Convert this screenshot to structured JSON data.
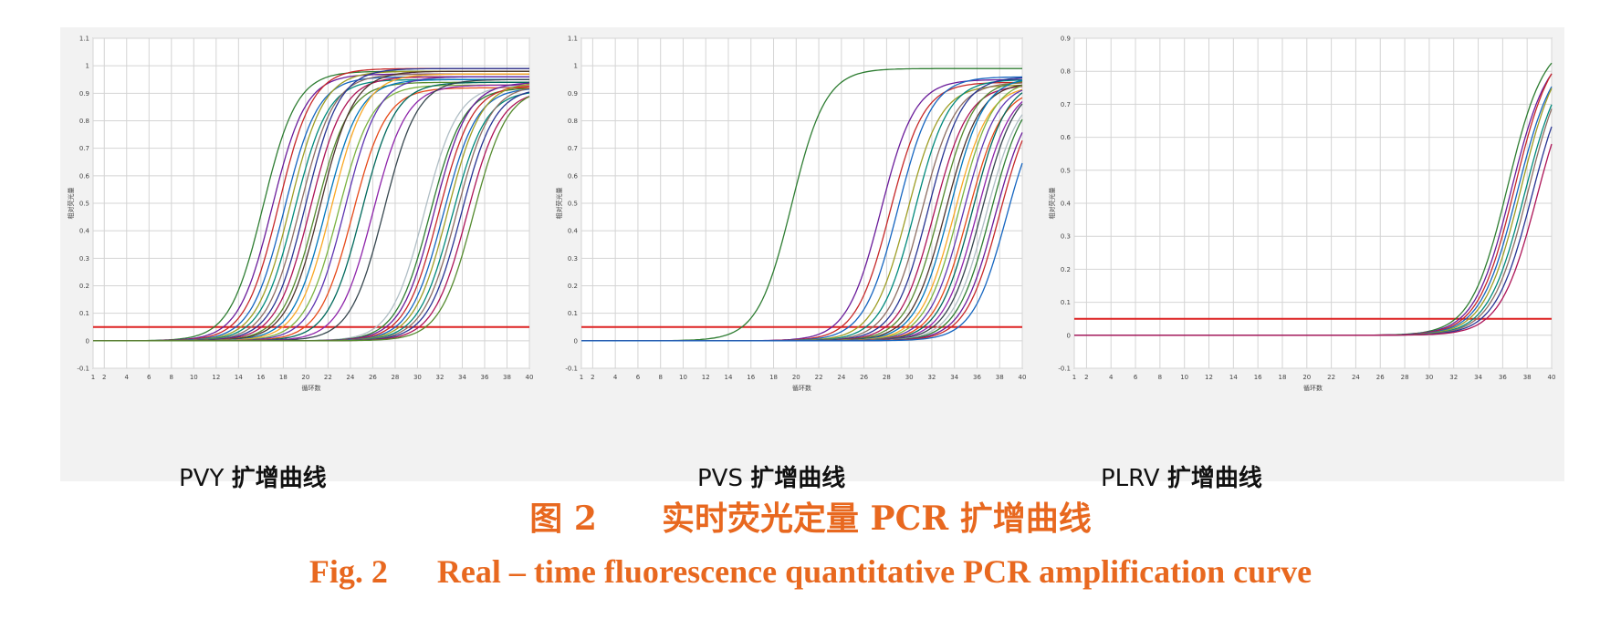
{
  "caption": {
    "cn_fig": "图 2",
    "cn_title": "实时荧光定量 PCR 扩增曲线",
    "en_fig": "Fig. 2",
    "en_title": "Real – time fluorescence quantitative PCR amplification curve",
    "color": "#e8681f"
  },
  "colors": {
    "background": "#f2f2f2",
    "plot_bg": "#ffffff",
    "grid": "#d4d4d4",
    "threshold": "#dd2222",
    "axis_text": "#444444",
    "curve_palette": [
      "#2e7d32",
      "#6a1b9a",
      "#c62828",
      "#1565c0",
      "#9e9d24",
      "#00897b",
      "#8d6e63",
      "#283593",
      "#ad1457",
      "#558b2f",
      "#4e342e",
      "#0277bd",
      "#f9a825",
      "#7cb342",
      "#5e35b1",
      "#e64a19",
      "#00695c",
      "#8e24aa",
      "#37474f",
      "#b0bec5"
    ]
  },
  "chart_data": [
    {
      "type": "line",
      "label_prefix": "PVY",
      "label_cn": "扩增曲线",
      "ylabel": "相对荧光量",
      "xlabel": "循环数",
      "xlim": [
        1,
        40
      ],
      "ylim": [
        -0.1,
        1.1
      ],
      "xticks": [
        "1",
        "2",
        "4",
        "6",
        "8",
        "10",
        "12",
        "14",
        "16",
        "18",
        "20",
        "22",
        "24",
        "26",
        "28",
        "30",
        "32",
        "34",
        "36",
        "38",
        "40"
      ],
      "yticks": [
        "-0.1",
        "0",
        "0.1",
        "0.2",
        "0.3",
        "0.4",
        "0.5",
        "0.6",
        "0.7",
        "0.8",
        "0.9",
        "1",
        "1.1"
      ],
      "threshold": 0.05,
      "grid": true,
      "series": [
        {
          "midpoint": 16.2,
          "plateau": 0.98
        },
        {
          "midpoint": 17.0,
          "plateau": 0.97
        },
        {
          "midpoint": 17.6,
          "plateau": 0.99
        },
        {
          "midpoint": 18.1,
          "plateau": 0.96
        },
        {
          "midpoint": 18.6,
          "plateau": 0.98
        },
        {
          "midpoint": 19.0,
          "plateau": 0.95
        },
        {
          "midpoint": 19.5,
          "plateau": 0.97
        },
        {
          "midpoint": 20.0,
          "plateau": 0.99
        },
        {
          "midpoint": 20.4,
          "plateau": 0.96
        },
        {
          "midpoint": 20.9,
          "plateau": 0.94
        },
        {
          "midpoint": 21.3,
          "plateau": 0.98
        },
        {
          "midpoint": 21.8,
          "plateau": 0.95
        },
        {
          "midpoint": 22.3,
          "plateau": 0.97
        },
        {
          "midpoint": 22.9,
          "plateau": 0.93
        },
        {
          "midpoint": 23.5,
          "plateau": 0.96
        },
        {
          "midpoint": 24.2,
          "plateau": 0.92
        },
        {
          "midpoint": 25.0,
          "plateau": 0.94
        },
        {
          "midpoint": 26.0,
          "plateau": 0.93
        },
        {
          "midpoint": 27.0,
          "plateau": 0.95
        },
        {
          "midpoint": 30.6,
          "plateau": 0.93
        },
        {
          "midpoint": 31.1,
          "plateau": 0.92
        },
        {
          "midpoint": 31.5,
          "plateau": 0.94
        },
        {
          "midpoint": 31.9,
          "plateau": 0.93
        },
        {
          "midpoint": 32.3,
          "plateau": 0.92
        },
        {
          "midpoint": 32.7,
          "plateau": 0.94
        },
        {
          "midpoint": 33.1,
          "plateau": 0.91
        },
        {
          "midpoint": 33.5,
          "plateau": 0.93
        },
        {
          "midpoint": 33.9,
          "plateau": 0.92
        },
        {
          "midpoint": 34.4,
          "plateau": 0.91
        },
        {
          "midpoint": 35.0,
          "plateau": 0.92
        }
      ]
    },
    {
      "type": "line",
      "label_prefix": "PVS",
      "label_cn": "扩增曲线",
      "ylabel": "相对荧光量",
      "xlabel": "循环数",
      "xlim": [
        1,
        40
      ],
      "ylim": [
        -0.1,
        1.1
      ],
      "xticks": [
        "1",
        "2",
        "4",
        "6",
        "8",
        "10",
        "12",
        "14",
        "16",
        "18",
        "20",
        "22",
        "24",
        "26",
        "28",
        "30",
        "32",
        "34",
        "36",
        "38",
        "40"
      ],
      "yticks": [
        "-0.1",
        "0",
        "0.1",
        "0.2",
        "0.3",
        "0.4",
        "0.5",
        "0.6",
        "0.7",
        "0.8",
        "0.9",
        "1",
        "1.1"
      ],
      "threshold": 0.05,
      "grid": true,
      "series": [
        {
          "midpoint": 19.6,
          "plateau": 0.99
        },
        {
          "midpoint": 27.5,
          "plateau": 0.95
        },
        {
          "midpoint": 28.3,
          "plateau": 0.94
        },
        {
          "midpoint": 29.0,
          "plateau": 0.96
        },
        {
          "midpoint": 29.8,
          "plateau": 0.93
        },
        {
          "midpoint": 30.5,
          "plateau": 0.95
        },
        {
          "midpoint": 31.1,
          "plateau": 0.94
        },
        {
          "midpoint": 31.7,
          "plateau": 0.96
        },
        {
          "midpoint": 32.2,
          "plateau": 0.93
        },
        {
          "midpoint": 32.7,
          "plateau": 0.95
        },
        {
          "midpoint": 33.2,
          "plateau": 0.94
        },
        {
          "midpoint": 33.6,
          "plateau": 0.96
        },
        {
          "midpoint": 34.0,
          "plateau": 0.93
        },
        {
          "midpoint": 34.4,
          "plateau": 0.95
        },
        {
          "midpoint": 34.8,
          "plateau": 0.94
        },
        {
          "midpoint": 35.2,
          "plateau": 0.92
        },
        {
          "midpoint": 35.6,
          "plateau": 0.95
        },
        {
          "midpoint": 36.0,
          "plateau": 0.93
        },
        {
          "midpoint": 36.4,
          "plateau": 0.94
        },
        {
          "midpoint": 36.8,
          "plateau": 0.92
        },
        {
          "midpoint": 37.2,
          "plateau": 0.93
        },
        {
          "midpoint": 37.6,
          "plateau": 0.91
        },
        {
          "midpoint": 38.0,
          "plateau": 0.92
        },
        {
          "midpoint": 38.6,
          "plateau": 0.9
        }
      ]
    },
    {
      "type": "line",
      "label_prefix": "PLRV",
      "label_cn": "扩增曲线",
      "ylabel": "相对荧光量",
      "xlabel": "循环数",
      "xlim": [
        1,
        40
      ],
      "ylim": [
        -0.1,
        0.9
      ],
      "xticks": [
        "1",
        "2",
        "4",
        "6",
        "8",
        "10",
        "12",
        "14",
        "16",
        "18",
        "20",
        "22",
        "24",
        "26",
        "28",
        "30",
        "32",
        "34",
        "36",
        "38",
        "40"
      ],
      "yticks": [
        "-0.1",
        "0",
        "0.1",
        "0.2",
        "0.3",
        "0.4",
        "0.5",
        "0.6",
        "0.7",
        "0.8",
        "0.9"
      ],
      "threshold": 0.05,
      "grid": true,
      "series": [
        {
          "midpoint": 36.4,
          "plateau": 0.9
        },
        {
          "midpoint": 36.7,
          "plateau": 0.88
        },
        {
          "midpoint": 37.0,
          "plateau": 0.9
        },
        {
          "midpoint": 37.2,
          "plateau": 0.87
        },
        {
          "midpoint": 37.5,
          "plateau": 0.89
        },
        {
          "midpoint": 37.8,
          "plateau": 0.86
        },
        {
          "midpoint": 38.1,
          "plateau": 0.88
        },
        {
          "midpoint": 38.4,
          "plateau": 0.85
        },
        {
          "midpoint": 38.8,
          "plateau": 0.84
        }
      ]
    }
  ]
}
